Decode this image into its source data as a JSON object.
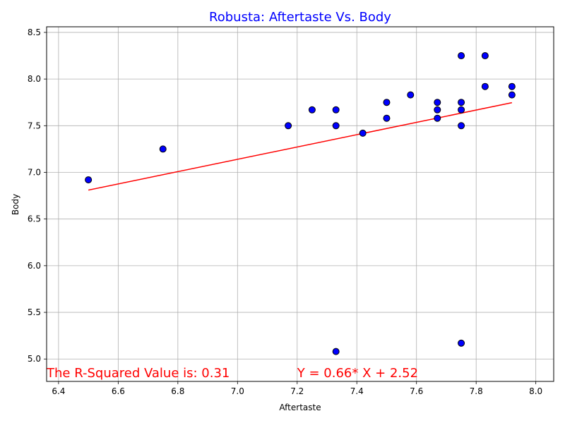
{
  "chart_data": {
    "type": "scatter",
    "title": "Robusta: Aftertaste Vs. Body",
    "title_color": "#0000ff",
    "xlabel": "Aftertaste",
    "ylabel": "Body",
    "xlim": [
      6.36,
      8.06
    ],
    "ylim": [
      4.76,
      8.56
    ],
    "xticks": [
      "6.4",
      "6.6",
      "6.8",
      "7.0",
      "7.2",
      "7.4",
      "7.6",
      "7.8",
      "8.0"
    ],
    "yticks": [
      "5.0",
      "5.5",
      "6.0",
      "6.5",
      "7.0",
      "7.5",
      "8.0",
      "8.5"
    ],
    "grid": true,
    "marker_color": "#0000ff",
    "marker_edge_color": "#000000",
    "line_color": "#ff0000",
    "points": [
      {
        "x": 6.5,
        "y": 6.92
      },
      {
        "x": 6.75,
        "y": 7.25
      },
      {
        "x": 7.17,
        "y": 7.5
      },
      {
        "x": 7.25,
        "y": 7.67
      },
      {
        "x": 7.33,
        "y": 7.67
      },
      {
        "x": 7.33,
        "y": 7.5
      },
      {
        "x": 7.33,
        "y": 5.08
      },
      {
        "x": 7.42,
        "y": 7.42
      },
      {
        "x": 7.5,
        "y": 7.75
      },
      {
        "x": 7.5,
        "y": 7.58
      },
      {
        "x": 7.58,
        "y": 7.83
      },
      {
        "x": 7.67,
        "y": 7.75
      },
      {
        "x": 7.67,
        "y": 7.67
      },
      {
        "x": 7.67,
        "y": 7.58
      },
      {
        "x": 7.75,
        "y": 8.25
      },
      {
        "x": 7.75,
        "y": 7.75
      },
      {
        "x": 7.75,
        "y": 7.67
      },
      {
        "x": 7.75,
        "y": 7.5
      },
      {
        "x": 7.75,
        "y": 5.17
      },
      {
        "x": 7.83,
        "y": 8.25
      },
      {
        "x": 7.83,
        "y": 7.92
      },
      {
        "x": 7.92,
        "y": 7.92
      },
      {
        "x": 7.92,
        "y": 7.83
      }
    ],
    "regression": {
      "slope": 0.66,
      "intercept": 2.52,
      "x_range": [
        6.5,
        7.92
      ]
    },
    "annotations": [
      {
        "text": "The R-Squared Value is: 0.31",
        "x": 6.36,
        "y": 4.86,
        "color": "#ff0000"
      },
      {
        "text": "Y = 0.66* X + 2.52",
        "x": 7.2,
        "y": 4.86,
        "color": "#ff0000"
      }
    ]
  }
}
